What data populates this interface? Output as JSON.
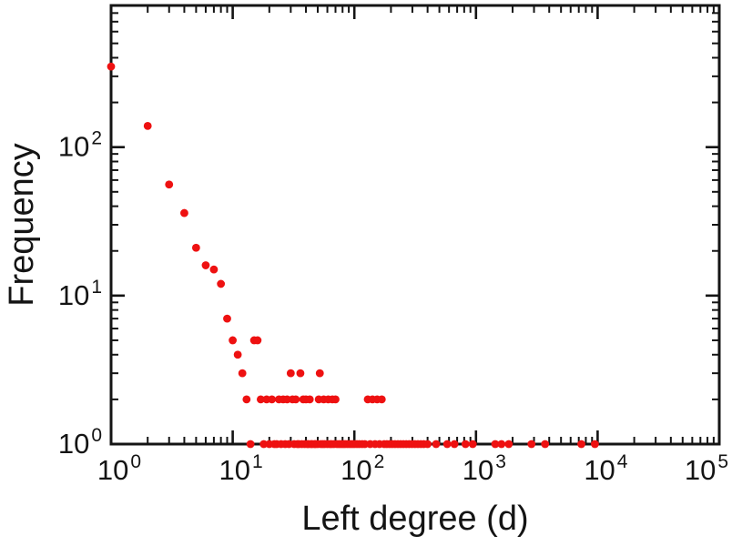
{
  "page": {
    "background": "#ffffff",
    "frame_color": "#141414"
  },
  "chart_data": {
    "type": "scatter",
    "title": "",
    "xlabel": "Left degree (d)",
    "ylabel": "Frequency",
    "x_scale": "log",
    "y_scale": "log",
    "xlim": [
      1,
      100000
    ],
    "ylim": [
      1,
      900
    ],
    "x_tick_exponents": [
      0,
      1,
      2,
      3,
      4,
      5
    ],
    "y_tick_exponents": [
      0,
      1,
      2
    ],
    "tick_label_base": "10",
    "grid": false,
    "legend": false,
    "marker": {
      "shape": "circle",
      "color": "#ee1111",
      "size": 4.4
    },
    "series": [
      {
        "name": "left-degree-frequency",
        "points": [
          [
            1,
            349
          ],
          [
            2,
            139
          ],
          [
            3,
            56
          ],
          [
            4,
            36
          ],
          [
            5,
            21
          ],
          [
            6,
            16
          ],
          [
            7,
            15
          ],
          [
            8,
            12
          ],
          [
            9,
            7
          ],
          [
            10,
            5
          ],
          [
            11,
            4
          ],
          [
            12,
            3
          ],
          [
            13,
            2
          ],
          [
            14,
            1
          ],
          [
            15,
            5
          ],
          [
            16,
            5
          ],
          [
            17,
            2
          ],
          [
            18,
            1
          ],
          [
            19,
            2
          ],
          [
            20,
            1
          ],
          [
            21,
            2
          ],
          [
            22,
            1
          ],
          [
            23,
            1
          ],
          [
            24,
            2
          ],
          [
            25,
            1
          ],
          [
            26,
            2
          ],
          [
            27,
            1
          ],
          [
            28,
            2
          ],
          [
            29,
            1
          ],
          [
            30,
            3
          ],
          [
            31,
            2
          ],
          [
            32,
            1
          ],
          [
            33,
            2
          ],
          [
            34,
            1
          ],
          [
            35,
            1
          ],
          [
            36,
            3
          ],
          [
            37,
            1
          ],
          [
            38,
            2
          ],
          [
            39,
            1
          ],
          [
            40,
            2
          ],
          [
            41,
            1
          ],
          [
            42,
            1
          ],
          [
            43,
            2
          ],
          [
            44,
            1
          ],
          [
            45,
            1
          ],
          [
            47,
            1
          ],
          [
            48,
            1
          ],
          [
            50,
            1
          ],
          [
            51,
            2
          ],
          [
            52,
            3
          ],
          [
            53,
            1
          ],
          [
            55,
            1
          ],
          [
            56,
            2
          ],
          [
            57,
            1
          ],
          [
            60,
            1
          ],
          [
            61,
            2
          ],
          [
            63,
            1
          ],
          [
            65,
            1
          ],
          [
            66,
            2
          ],
          [
            68,
            1
          ],
          [
            70,
            2
          ],
          [
            72,
            1
          ],
          [
            75,
            1
          ],
          [
            78,
            1
          ],
          [
            81,
            1
          ],
          [
            84,
            1
          ],
          [
            88,
            1
          ],
          [
            92,
            1
          ],
          [
            96,
            1
          ],
          [
            100,
            1
          ],
          [
            105,
            1
          ],
          [
            110,
            1
          ],
          [
            116,
            1
          ],
          [
            122,
            1
          ],
          [
            129,
            2
          ],
          [
            135,
            1
          ],
          [
            141,
            2
          ],
          [
            148,
            1
          ],
          [
            154,
            2
          ],
          [
            161,
            1
          ],
          [
            168,
            2
          ],
          [
            176,
            1
          ],
          [
            185,
            1
          ],
          [
            195,
            1
          ],
          [
            205,
            1
          ],
          [
            216,
            1
          ],
          [
            228,
            1
          ],
          [
            240,
            1
          ],
          [
            253,
            1
          ],
          [
            267,
            1
          ],
          [
            282,
            1
          ],
          [
            298,
            1
          ],
          [
            315,
            1
          ],
          [
            333,
            1
          ],
          [
            352,
            1
          ],
          [
            372,
            1
          ],
          [
            400,
            1
          ],
          [
            470,
            1
          ],
          [
            580,
            1
          ],
          [
            665,
            1
          ],
          [
            820,
            1
          ],
          [
            940,
            1
          ],
          [
            1440,
            1
          ],
          [
            1620,
            1
          ],
          [
            1860,
            1
          ],
          [
            2860,
            1
          ],
          [
            3700,
            1
          ],
          [
            7350,
            1
          ],
          [
            9500,
            1
          ]
        ]
      }
    ]
  }
}
